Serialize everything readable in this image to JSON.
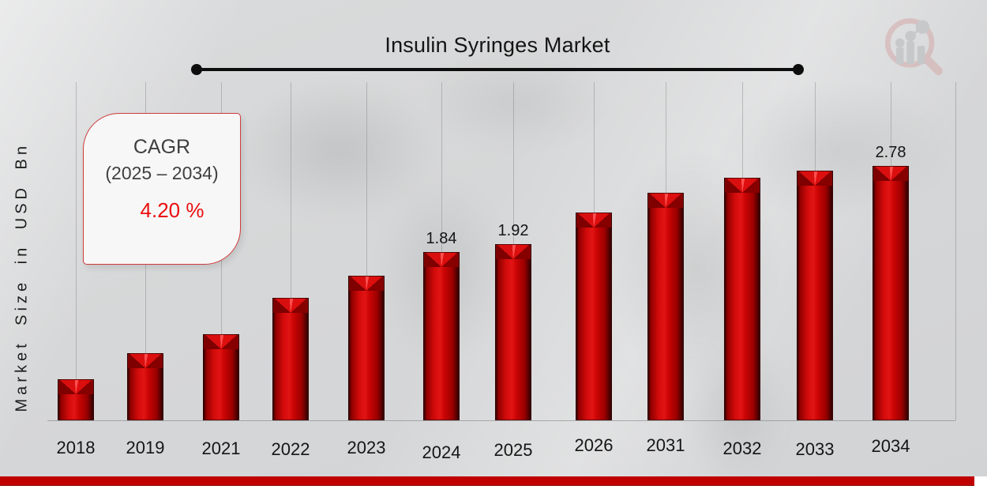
{
  "header": {
    "title": "Insulin Syringes Market"
  },
  "watermark": {
    "logo_icon": "market-research-future-magnifier-logo"
  },
  "y_axis_label": "Market Size in USD Bn",
  "cagr_box": {
    "heading": "CAGR",
    "range": "(2025 – 2034)",
    "value": "4.20 %"
  },
  "chart_data": {
    "type": "bar",
    "title": "Insulin Syringes Market",
    "xlabel": "",
    "ylabel": "Market Size in USD Bn",
    "categories": [
      "2018",
      "2019",
      "2021",
      "2022",
      "2023",
      "2024",
      "2025",
      "2026",
      "2031",
      "2032",
      "2033",
      "2034"
    ],
    "values": [
      0.45,
      0.73,
      0.94,
      1.34,
      1.58,
      1.84,
      1.92,
      2.27,
      2.48,
      2.65,
      2.72,
      2.78
    ],
    "data_labels": [
      "",
      "",
      "",
      "",
      "",
      "1.84",
      "1.92",
      "",
      "",
      "",
      "",
      "2.78"
    ],
    "ylim": [
      0,
      3
    ],
    "grid": {
      "vertical": true,
      "horizontal": false
    },
    "legend": "none",
    "bar_color": "#c00000"
  },
  "colors": {
    "bar_red": "#c00000",
    "cagr_value_red": "#ea0e0e",
    "cagr_border_red": "#cf3a3a",
    "accent_stripe_red": "#c00000",
    "background_gray": "#d7d8d9",
    "text_dark": "#151515"
  }
}
